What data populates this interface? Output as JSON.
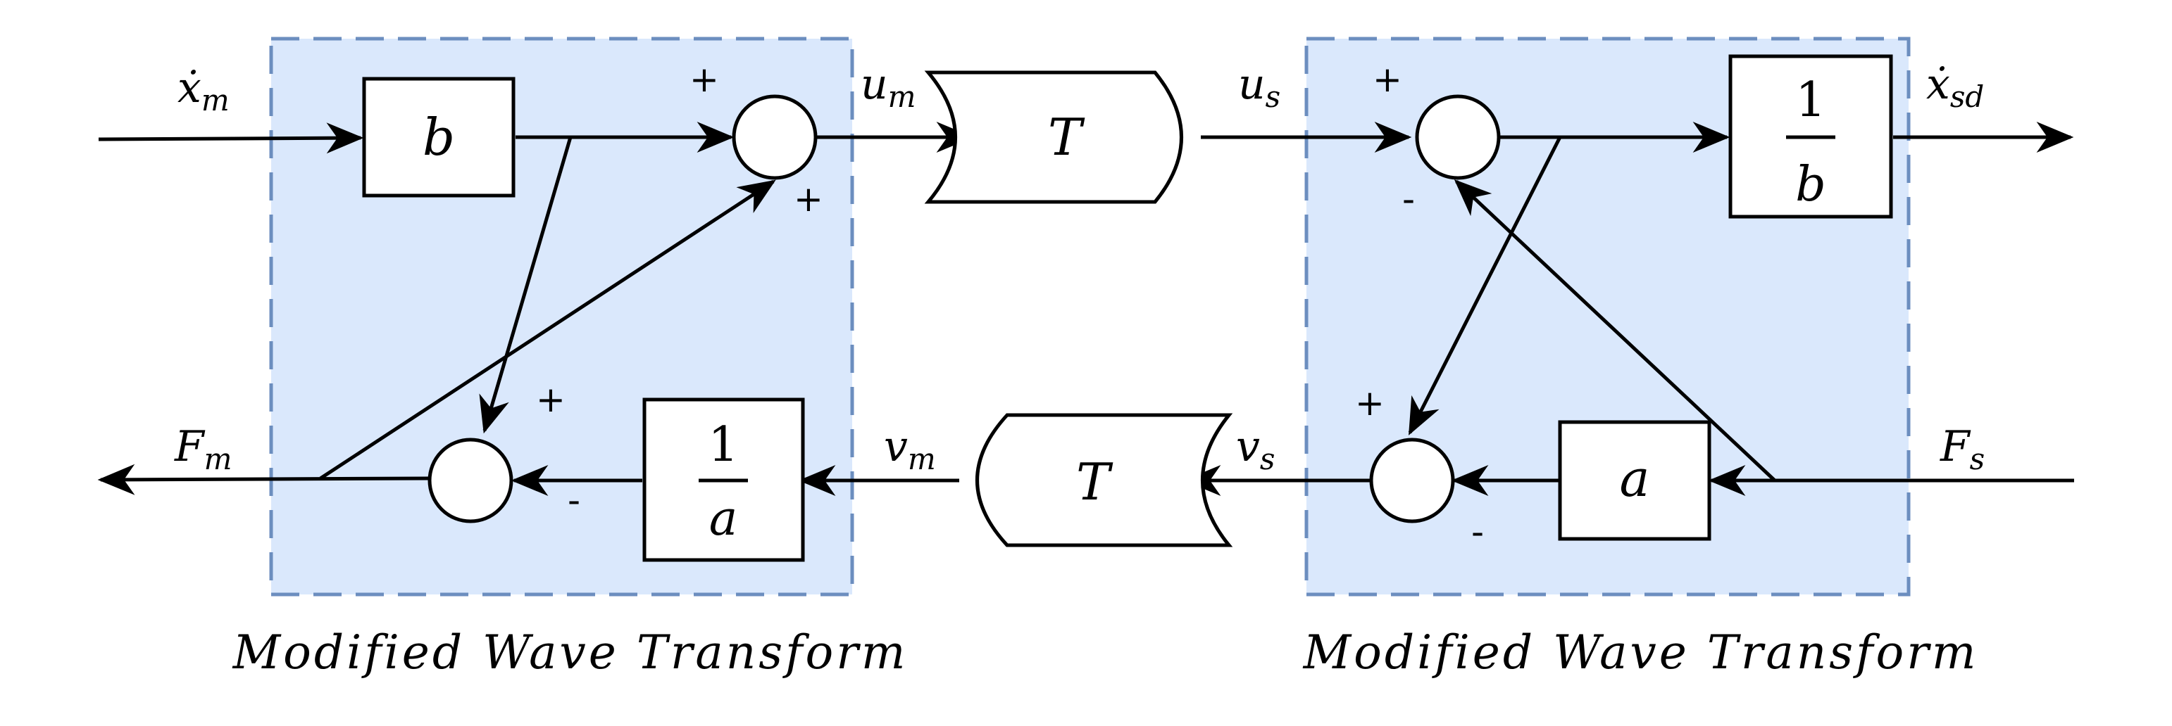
{
  "colors": {
    "region_fill": "#dae8fc",
    "region_stroke": "#6c8ebf",
    "line": "#000000"
  },
  "left_block": {
    "caption": "Modified Wave Transform",
    "gain_b": "b",
    "gain_inv_a_num": "1",
    "gain_inv_a_den": "a",
    "sum_top_sign_in": "+",
    "sum_top_sign_fb": "+",
    "sum_bottom_sign_in": "+",
    "sum_bottom_sign_fb": "-"
  },
  "right_block": {
    "caption": "Modified Wave Transform",
    "gain_inv_b_num": "1",
    "gain_inv_b_den": "b",
    "gain_a": "a",
    "sum_top_sign_in": "+",
    "sum_top_sign_fb": "-",
    "sum_bottom_sign_in": "+",
    "sum_bottom_sign_fb": "-"
  },
  "delays": {
    "forward": "T",
    "backward": "T"
  },
  "signals": {
    "x_m_dot_base": "ẋ",
    "x_m_dot_sub": "m",
    "u_m_base": "u",
    "u_m_sub": "m",
    "u_s_base": "u",
    "u_s_sub": "s",
    "x_sd_dot_base": "ẋ",
    "x_sd_dot_sub": "sd",
    "F_m_base": "F",
    "F_m_sub": "m",
    "v_m_base": "v",
    "v_m_sub": "m",
    "v_s_base": "v",
    "v_s_sub": "s",
    "F_s_base": "F",
    "F_s_sub": "s"
  }
}
